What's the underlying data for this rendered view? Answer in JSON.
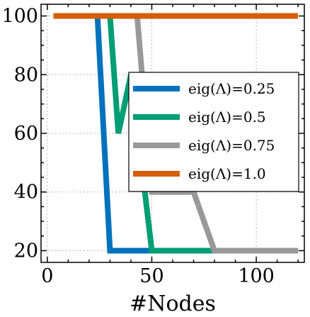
{
  "chart_data": {
    "type": "line",
    "title": "",
    "xlabel": "#Nodes",
    "ylabel": "",
    "xlim": [
      -3,
      123
    ],
    "ylim": [
      16,
      104
    ],
    "xticks": [
      0,
      50,
      100
    ],
    "yticks": [
      20,
      40,
      60,
      80,
      100
    ],
    "xtick_labels": [
      "0",
      "50",
      "100"
    ],
    "ytick_labels": [
      "20",
      "40",
      "60",
      "80",
      "100"
    ],
    "grid": true,
    "legend_position": "center-right",
    "series": [
      {
        "name": "eig(Λ)=0.25",
        "color": "#0072bd",
        "x": [
          3,
          24,
          30,
          40,
          50,
          60,
          70,
          80,
          90,
          100,
          110,
          120
        ],
        "y": [
          100,
          100,
          20,
          20,
          20,
          20,
          20,
          20,
          20,
          20,
          20,
          20
        ]
      },
      {
        "name": "eig(Λ)=0.5",
        "color": "#009e73",
        "x": [
          3,
          30,
          34,
          40,
          50,
          60,
          70,
          79,
          90,
          100,
          110,
          120
        ],
        "y": [
          100,
          100,
          60,
          80,
          20,
          20,
          20,
          20,
          20,
          20,
          20,
          20
        ]
      },
      {
        "name": "eig(Λ)=0.75",
        "color": "#999999",
        "x": [
          3,
          43,
          50,
          60,
          70,
          80,
          90,
          100,
          110,
          120
        ],
        "y": [
          100,
          100,
          40,
          40,
          40,
          20,
          20,
          20,
          20,
          20
        ]
      },
      {
        "name": "eig(Λ)=1.0",
        "color": "#d55e00",
        "x": [
          3,
          20,
          40,
          60,
          80,
          100,
          120
        ],
        "y": [
          100,
          100,
          100,
          100,
          100,
          100,
          100
        ]
      }
    ]
  }
}
